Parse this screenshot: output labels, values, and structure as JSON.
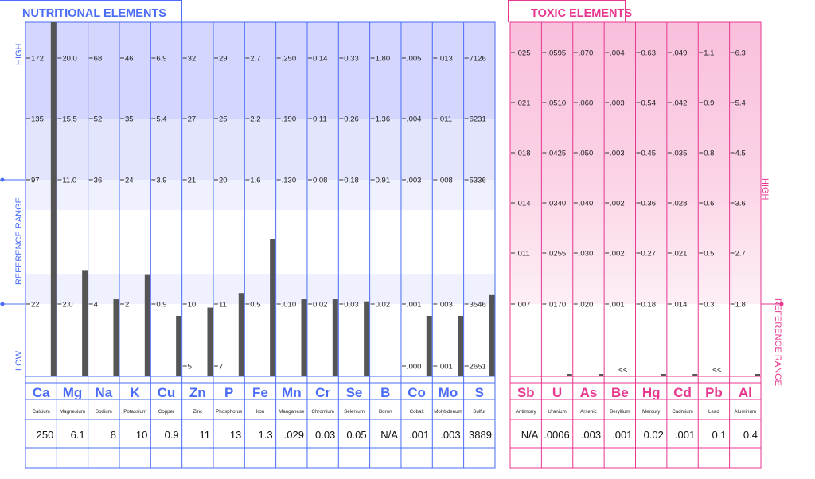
{
  "nutritional": {
    "title": "NUTRITIONAL ELEMENTS",
    "high_label": "HIGH",
    "low_label": "LOW",
    "ref_label": "REFERENCE RANGE",
    "accent": "#4a6cf7",
    "elements": [
      {
        "symbol": "Ca",
        "name": "Calcium",
        "result": "250",
        "ticks": [
          "172",
          "135",
          "97",
          "",
          "22",
          ""
        ]
      },
      {
        "symbol": "Mg",
        "name": "Magnesium",
        "result": "6.1",
        "ticks": [
          "20.0",
          "15.5",
          "11.0",
          "",
          "2.0",
          ""
        ]
      },
      {
        "symbol": "Na",
        "name": "Sodium",
        "result": "8",
        "ticks": [
          "68",
          "52",
          "36",
          "",
          "4",
          ""
        ]
      },
      {
        "symbol": "K",
        "name": "Potassium",
        "result": "10",
        "ticks": [
          "46",
          "35",
          "24",
          "",
          "2",
          ""
        ]
      },
      {
        "symbol": "Cu",
        "name": "Copper",
        "result": "0.9",
        "ticks": [
          "6.9",
          "5.4",
          "3.9",
          "",
          "0.9",
          ""
        ]
      },
      {
        "symbol": "Zn",
        "name": "Zinc",
        "result": "11",
        "ticks": [
          "32",
          "27",
          "21",
          "",
          "10",
          "5"
        ]
      },
      {
        "symbol": "P",
        "name": "Phosphorus",
        "result": "13",
        "ticks": [
          "29",
          "25",
          "20",
          "",
          "11",
          "7"
        ]
      },
      {
        "symbol": "Fe",
        "name": "Iron",
        "result": "1.3",
        "ticks": [
          "2.7",
          "2.2",
          "1.6",
          "",
          "0.5",
          ""
        ]
      },
      {
        "symbol": "Mn",
        "name": "Manganese",
        "result": ".029",
        "ticks": [
          ".250",
          ".190",
          ".130",
          "",
          ".010",
          ""
        ]
      },
      {
        "symbol": "Cr",
        "name": "Chromium",
        "result": "0.03",
        "ticks": [
          "0.14",
          "0.11",
          "0.08",
          "",
          "0.02",
          ""
        ]
      },
      {
        "symbol": "Se",
        "name": "Selenium",
        "result": "0.05",
        "ticks": [
          "0.33",
          "0.26",
          "0.18",
          "",
          "0.03",
          ""
        ]
      },
      {
        "symbol": "B",
        "name": "Boron",
        "result": "N/A",
        "ticks": [
          "1.80",
          "1.36",
          "0.91",
          "",
          "0.02",
          ""
        ]
      },
      {
        "symbol": "Co",
        "name": "Cobalt",
        "result": ".001",
        "ticks": [
          ".005",
          ".004",
          ".003",
          "",
          ".001",
          ".000"
        ]
      },
      {
        "symbol": "Mo",
        "name": "Molybdenum",
        "result": ".003",
        "ticks": [
          ".013",
          ".011",
          ".008",
          "",
          ".003",
          ".001"
        ]
      },
      {
        "symbol": "S",
        "name": "Sulfur",
        "result": "3889",
        "ticks": [
          "7126",
          "6231",
          "5336",
          "",
          "3546",
          "2651"
        ]
      }
    ]
  },
  "toxic": {
    "title": "TOXIC ELEMENTS",
    "high_label": "HIGH",
    "ref_label": "REFERENCE RANGE",
    "accent": "#e8378f",
    "elements": [
      {
        "symbol": "Sb",
        "name": "Antimony",
        "result": "N/A",
        "ticks": [
          ".025",
          ".021",
          ".018",
          ".014",
          ".011",
          ".007"
        ],
        "marker": ""
      },
      {
        "symbol": "U",
        "name": "Uranium",
        "result": ".0006",
        "ticks": [
          ".0595",
          ".0510",
          ".0425",
          ".0340",
          ".0255",
          ".0170"
        ],
        "marker": ""
      },
      {
        "symbol": "As",
        "name": "Arsenic",
        "result": ".003",
        "ticks": [
          ".070",
          ".060",
          ".050",
          ".040",
          ".030",
          ".020"
        ],
        "marker": ""
      },
      {
        "symbol": "Be",
        "name": "Beryllium",
        "result": ".001",
        "ticks": [
          ".004",
          ".003",
          ".003",
          ".002",
          ".002",
          ".001"
        ],
        "marker": "<<"
      },
      {
        "symbol": "Hg",
        "name": "Mercury",
        "result": "0.02",
        "ticks": [
          "0.63",
          "0.54",
          "0.45",
          "0.36",
          "0.27",
          "0.18"
        ],
        "marker": ""
      },
      {
        "symbol": "Cd",
        "name": "Cadmium",
        "result": ".001",
        "ticks": [
          ".049",
          ".042",
          ".035",
          ".028",
          ".021",
          ".014"
        ],
        "marker": ""
      },
      {
        "symbol": "Pb",
        "name": "Lead",
        "result": "0.1",
        "ticks": [
          "1.1",
          "0.9",
          "0.8",
          "0.6",
          "0.5",
          "0.3"
        ],
        "marker": "<<"
      },
      {
        "symbol": "Al",
        "name": "Aluminum",
        "result": "0.4",
        "ticks": [
          "6.3",
          "5.4",
          "4.5",
          "3.6",
          "2.7",
          "1.8"
        ],
        "marker": ""
      }
    ]
  },
  "chart_data": [
    {
      "type": "bar",
      "title": "NUTRITIONAL ELEMENTS",
      "categories": [
        "Ca",
        "Mg",
        "Na",
        "K",
        "Cu",
        "Zn",
        "P",
        "Fe",
        "Mn",
        "Cr",
        "Se",
        "B",
        "Co",
        "Mo",
        "S"
      ],
      "values": [
        250,
        6.1,
        8,
        10,
        0.9,
        11,
        13,
        1.3,
        0.029,
        0.03,
        0.05,
        null,
        0.001,
        0.003,
        3889
      ],
      "reference_range": {
        "low": [
          "22",
          "2.0",
          "4",
          "2",
          "0.9",
          "10",
          "11",
          "0.5",
          ".010",
          "0.02",
          "0.03",
          "0.02",
          ".001",
          ".003",
          "3546"
        ],
        "high": [
          "97",
          "11.0",
          "36",
          "24",
          "3.9",
          "21",
          "20",
          "1.6",
          ".130",
          "0.08",
          "0.18",
          "0.91",
          ".003",
          ".008",
          "5336"
        ]
      },
      "bar_level": [
        1.7,
        0.51,
        0.37,
        0.49,
        0.29,
        0.33,
        0.4,
        0.66,
        0.37,
        0.37,
        0.36,
        null,
        0.29,
        0.29,
        0.39
      ],
      "xlabel": "",
      "ylabel": "REFERENCE RANGE"
    },
    {
      "type": "bar",
      "title": "TOXIC ELEMENTS",
      "categories": [
        "Sb",
        "U",
        "As",
        "Be",
        "Hg",
        "Cd",
        "Pb",
        "Al"
      ],
      "values": [
        null,
        0.0006,
        0.003,
        0.001,
        0.02,
        0.001,
        0.1,
        0.4
      ],
      "bar_level": [
        null,
        0.01,
        0.01,
        0.0,
        0.01,
        0.01,
        0.0,
        0.01
      ],
      "xlabel": "",
      "ylabel": "REFERENCE RANGE"
    }
  ]
}
